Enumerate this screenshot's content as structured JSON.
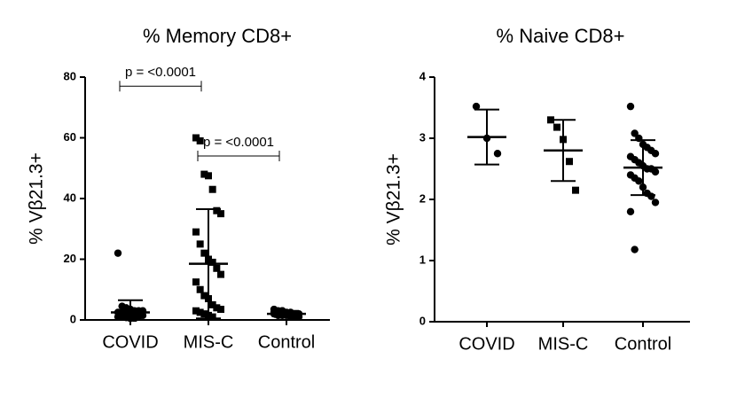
{
  "chart_data": [
    {
      "type": "dotplot",
      "title": "% Memory CD8+",
      "ylabel": "% Vβ21.3+",
      "categories": [
        "COVID",
        "MIS-C",
        "Control"
      ],
      "markers": [
        "circle",
        "square",
        "circle"
      ],
      "color": "#000000",
      "points": [
        [
          22,
          4.5,
          4,
          3.5,
          3,
          3,
          3,
          2.5,
          2.5,
          2,
          2,
          2,
          1.5,
          1.5,
          1,
          1,
          0.8,
          0.5,
          0.5,
          1
        ],
        [
          60,
          59,
          48,
          47.5,
          43,
          36,
          35,
          29,
          25,
          22,
          20,
          19,
          17,
          15,
          12.5,
          10,
          8,
          7,
          5,
          4,
          3.5,
          3,
          2.5,
          2,
          1.5,
          1
        ],
        [
          3.5,
          3,
          3,
          2.5,
          2.5,
          2,
          2,
          2,
          1.5,
          1.5,
          1.5,
          1,
          1,
          1,
          2.5,
          2,
          3
        ]
      ],
      "means": [
        2.5,
        18.5,
        2
      ],
      "sds": [
        4,
        18,
        1
      ],
      "ylim": [
        0,
        80
      ],
      "yticks": [
        0,
        20,
        40,
        60,
        80
      ],
      "annotations": [
        {
          "text": "p = <0.0001",
          "from": 0,
          "to": 1,
          "y": 77
        },
        {
          "text": "p = <0.0001",
          "from": 1,
          "to": 2,
          "y": 54
        }
      ]
    },
    {
      "type": "dotplot",
      "title": "% Naive CD8+",
      "ylabel": "% Vβ21.3+",
      "categories": [
        "COVID",
        "MIS-C",
        "Control"
      ],
      "markers": [
        "circle",
        "square",
        "circle"
      ],
      "color": "#000000",
      "points": [
        [
          3.52,
          3.0,
          2.75
        ],
        [
          3.3,
          3.18,
          2.98,
          2.62,
          2.15
        ],
        [
          3.52,
          3.08,
          3.0,
          2.9,
          2.85,
          2.8,
          2.75,
          2.7,
          2.65,
          2.6,
          2.55,
          2.5,
          2.5,
          2.45,
          2.4,
          2.35,
          2.3,
          2.2,
          2.1,
          2.05,
          1.95,
          1.8,
          1.18
        ]
      ],
      "means": [
        3.02,
        2.8,
        2.52
      ],
      "sds": [
        0.45,
        0.5,
        0.45
      ],
      "ylim": [
        0,
        4
      ],
      "yticks": [
        0,
        1,
        2,
        3,
        4
      ],
      "annotations": []
    }
  ]
}
